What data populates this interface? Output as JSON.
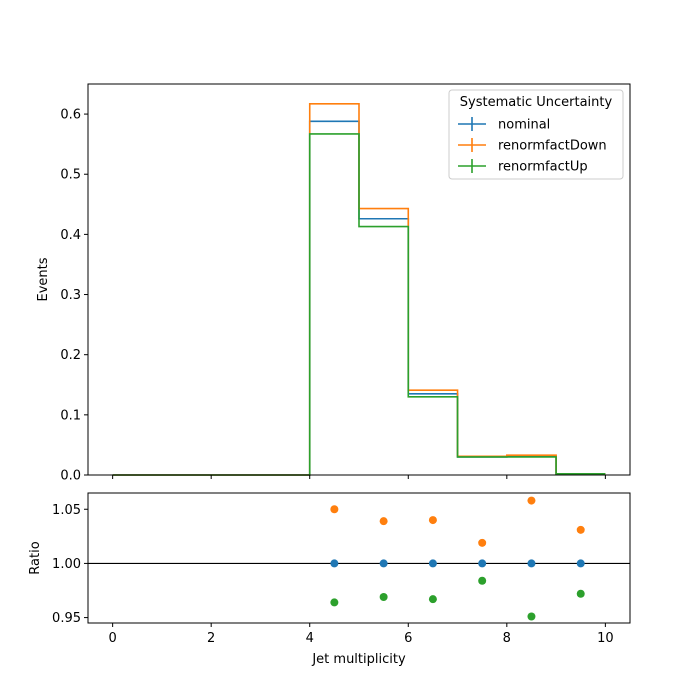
{
  "chart_data": [
    {
      "type": "line",
      "subtype": "step-histogram",
      "title": "",
      "xlabel": "",
      "ylabel": "Events",
      "xlim": [
        -0.5,
        10.5
      ],
      "ylim": [
        0,
        0.65
      ],
      "bin_edges": [
        0,
        1,
        2,
        3,
        4,
        5,
        6,
        7,
        8,
        9,
        10
      ],
      "xticks": [
        0,
        2,
        4,
        6,
        8,
        10
      ],
      "yticks": [
        0.0,
        0.1,
        0.2,
        0.3,
        0.4,
        0.5,
        0.6
      ],
      "ytick_labels": [
        "0.0",
        "0.1",
        "0.2",
        "0.3",
        "0.4",
        "0.5",
        "0.6"
      ],
      "legend": {
        "title": "Systematic Uncertainty",
        "position": "top-right"
      },
      "series": [
        {
          "name": "nominal",
          "color": "#1f77b4",
          "values": [
            0,
            0,
            0,
            0,
            0.588,
            0.426,
            0.135,
            0.03,
            0.031,
            0.002
          ]
        },
        {
          "name": "renormfactDown",
          "color": "#ff7f0e",
          "values": [
            0,
            0,
            0,
            0,
            0.617,
            0.443,
            0.141,
            0.031,
            0.033,
            0.002
          ]
        },
        {
          "name": "renormfactUp",
          "color": "#2ca02c",
          "values": [
            0,
            0,
            0,
            0,
            0.567,
            0.413,
            0.13,
            0.03,
            0.03,
            0.002
          ]
        }
      ]
    },
    {
      "type": "scatter",
      "title": "",
      "xlabel": "Jet multiplicity",
      "ylabel": "Ratio",
      "xlim": [
        -0.5,
        10.5
      ],
      "ylim": [
        0.945,
        1.065
      ],
      "xticks": [
        0,
        2,
        4,
        6,
        8,
        10
      ],
      "xtick_labels": [
        "0",
        "2",
        "4",
        "6",
        "8",
        "10"
      ],
      "yticks": [
        0.95,
        1.0,
        1.05
      ],
      "ytick_labels": [
        "0.95",
        "1.00",
        "1.05"
      ],
      "reference_line": 1.0,
      "x": [
        4.5,
        5.5,
        6.5,
        7.5,
        8.5,
        9.5
      ],
      "series": [
        {
          "name": "nominal",
          "color": "#1f77b4",
          "values": [
            1.0,
            1.0,
            1.0,
            1.0,
            1.0,
            1.0
          ]
        },
        {
          "name": "renormfactDown",
          "color": "#ff7f0e",
          "values": [
            1.05,
            1.039,
            1.04,
            1.019,
            1.058,
            1.031
          ]
        },
        {
          "name": "renormfactUp",
          "color": "#2ca02c",
          "values": [
            0.964,
            0.969,
            0.967,
            0.984,
            0.951,
            0.972
          ]
        }
      ]
    }
  ]
}
